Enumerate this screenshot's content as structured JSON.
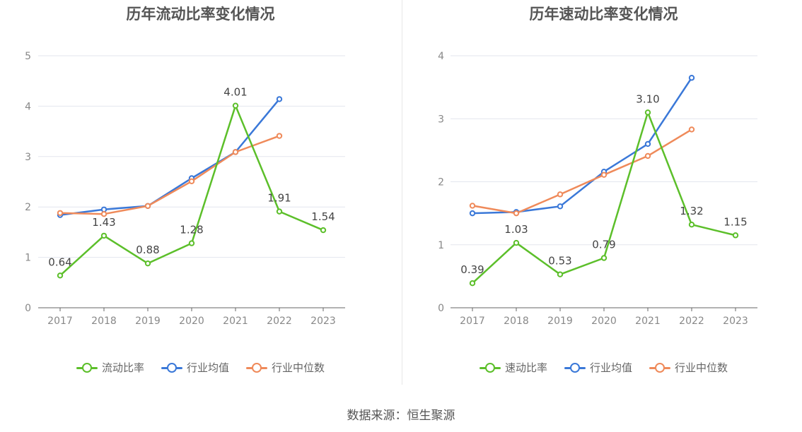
{
  "source_text": "数据来源：恒生聚源",
  "chart_data": [
    {
      "type": "line",
      "title": "历年流动比率变化情况",
      "categories": [
        "2017",
        "2018",
        "2019",
        "2020",
        "2021",
        "2022",
        "2023"
      ],
      "y_ticks": [
        "0",
        "1",
        "2",
        "3",
        "4",
        "5"
      ],
      "ylim": [
        0,
        5
      ],
      "grid": true,
      "legend_position": "bottom",
      "series": [
        {
          "name": "流动比率",
          "color": "#5cbf2a",
          "values": [
            0.64,
            1.43,
            0.88,
            1.28,
            4.01,
            1.91,
            1.54
          ],
          "labels": [
            "0.64",
            "1.43",
            "0.88",
            "1.28",
            "4.01",
            "1.91",
            "1.54"
          ]
        },
        {
          "name": "行业均值",
          "color": "#3a78d8",
          "values": [
            1.84,
            1.95,
            2.02,
            2.57,
            3.09,
            4.14,
            null
          ]
        },
        {
          "name": "行业中位数",
          "color": "#ef8a5a",
          "values": [
            1.88,
            1.86,
            2.02,
            2.51,
            3.09,
            3.41,
            null
          ]
        }
      ]
    },
    {
      "type": "line",
      "title": "历年速动比率变化情况",
      "categories": [
        "2017",
        "2018",
        "2019",
        "2020",
        "2021",
        "2022",
        "2023"
      ],
      "y_ticks": [
        "0",
        "1",
        "2",
        "3",
        "4"
      ],
      "ylim": [
        0,
        4
      ],
      "grid": true,
      "legend_position": "bottom",
      "series": [
        {
          "name": "速动比率",
          "color": "#5cbf2a",
          "values": [
            0.39,
            1.03,
            0.53,
            0.79,
            3.1,
            1.32,
            1.15
          ],
          "labels": [
            "0.39",
            "1.03",
            "0.53",
            "0.79",
            "3.10",
            "1.32",
            "1.15"
          ]
        },
        {
          "name": "行业均值",
          "color": "#3a78d8",
          "values": [
            1.5,
            1.52,
            1.61,
            2.16,
            2.6,
            3.65,
            null
          ]
        },
        {
          "name": "行业中位数",
          "color": "#ef8a5a",
          "values": [
            1.62,
            1.5,
            1.8,
            2.11,
            2.41,
            2.83,
            null
          ]
        }
      ]
    }
  ]
}
